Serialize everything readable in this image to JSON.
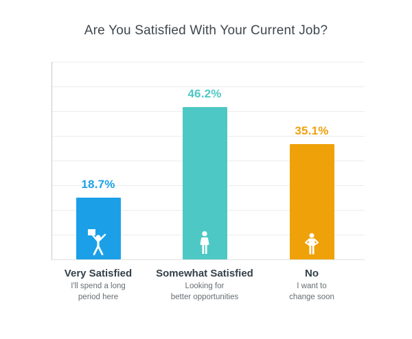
{
  "chart_data": {
    "type": "bar",
    "title": "Are You Satisfied With Your Current Job?",
    "categories": [
      "Very Satisfied",
      "Somewhat Satisfied",
      "No"
    ],
    "subtitles": [
      "I'll spend a long\nperiod here",
      "Looking for\nbetter opportunities",
      "I want to\nchange soon"
    ],
    "values": [
      18.7,
      46.2,
      35.1
    ],
    "value_labels": [
      "18.7%",
      "46.2%",
      "35.1%"
    ],
    "colors": [
      "#1ba0e8",
      "#4ec8c4",
      "#efa10a"
    ],
    "icons": [
      "celebrating-person-icon",
      "standing-person-icon",
      "disappointed-person-icon"
    ],
    "xlabel": "",
    "ylabel": "",
    "ylim": [
      0,
      60
    ],
    "grid": true,
    "legend": false
  }
}
